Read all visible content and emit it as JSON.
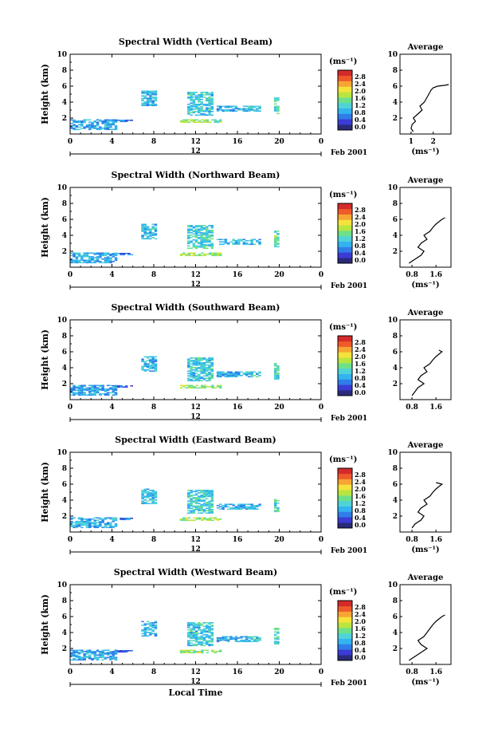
{
  "chart_data": [
    {
      "type": "heatmap",
      "title": "Spectral Width (Vertical Beam)",
      "ylabel": "Height (km)",
      "ylim": [
        0,
        10
      ],
      "yticks": [
        "2",
        "4",
        "6",
        "8",
        "10"
      ],
      "xlim": [
        0,
        24
      ],
      "xticks": [
        "0",
        "4",
        "8",
        "12",
        "16",
        "20",
        "0"
      ],
      "date_center": "12",
      "date_label": "Feb 2001",
      "colorbar": {
        "unit": "(ms⁻¹)",
        "ticks": [
          "0.0",
          "0.4",
          "0.8",
          "1.2",
          "1.6",
          "2.0",
          "2.4",
          "2.8"
        ]
      },
      "average": {
        "title": "Average",
        "xlabel": "(ms⁻¹)",
        "xticks": [
          "1",
          "2"
        ],
        "xlim": [
          0.5,
          2.8
        ],
        "ylim": [
          0,
          10
        ],
        "yticks": [
          "2",
          "4",
          "6",
          "8",
          "10"
        ],
        "x": [
          1.1,
          1.0,
          1.05,
          1.2,
          1.1,
          1.3,
          1.5,
          1.4,
          1.6,
          1.7,
          1.8,
          1.9,
          2.0,
          2.2,
          2.5,
          2.7,
          2.7
        ],
        "y": [
          0.3,
          0.7,
          1.2,
          1.6,
          2.0,
          2.5,
          3.0,
          3.5,
          4.0,
          4.5,
          5.0,
          5.5,
          5.8,
          6.0,
          6.1,
          6.2,
          6.2
        ]
      }
    },
    {
      "type": "heatmap",
      "title": "Spectral Width (Northward Beam)",
      "ylabel": "Height (km)",
      "ylim": [
        0,
        10
      ],
      "yticks": [
        "2",
        "4",
        "6",
        "8",
        "10"
      ],
      "xlim": [
        0,
        24
      ],
      "xticks": [
        "0",
        "4",
        "8",
        "12",
        "16",
        "20",
        "0"
      ],
      "date_center": "12",
      "date_label": "Feb 2001",
      "colorbar": {
        "unit": "(ms⁻¹)",
        "ticks": [
          "0.0",
          "0.4",
          "0.8",
          "1.2",
          "1.6",
          "2.0",
          "2.4",
          "2.8"
        ]
      },
      "average": {
        "title": "Average",
        "xlabel": "(ms⁻¹)",
        "xticks": [
          "0.8",
          "1.6"
        ],
        "xlim": [
          0.4,
          2.1
        ],
        "ylim": [
          0,
          10
        ],
        "yticks": [
          "2",
          "4",
          "6",
          "8",
          "10"
        ],
        "x": [
          0.7,
          0.9,
          1.1,
          1.2,
          1.0,
          1.1,
          1.3,
          1.2,
          1.4,
          1.5,
          1.6,
          1.7,
          1.8,
          1.9
        ],
        "y": [
          0.5,
          1.0,
          1.5,
          2.0,
          2.5,
          3.0,
          3.5,
          4.0,
          4.5,
          5.0,
          5.4,
          5.7,
          6.0,
          6.2
        ]
      }
    },
    {
      "type": "heatmap",
      "title": "Spectral Width (Southward Beam)",
      "ylabel": "Height (km)",
      "ylim": [
        0,
        10
      ],
      "yticks": [
        "2",
        "4",
        "6",
        "8",
        "10"
      ],
      "xlim": [
        0,
        24
      ],
      "xticks": [
        "0",
        "4",
        "8",
        "12",
        "16",
        "20",
        "0"
      ],
      "date_center": "12",
      "date_label": "Feb 2001",
      "colorbar": {
        "unit": "(ms⁻¹)",
        "ticks": [
          "0.0",
          "0.4",
          "0.8",
          "1.2",
          "1.6",
          "2.0",
          "2.4",
          "2.8"
        ]
      },
      "average": {
        "title": "Average",
        "xlabel": "",
        "xticks": [
          "0.8",
          "1.6"
        ],
        "xlim": [
          0.4,
          2.1
        ],
        "ylim": [
          0,
          10
        ],
        "yticks": [
          "2",
          "4",
          "6",
          "8",
          "10"
        ],
        "x": [
          0.8,
          0.9,
          1.0,
          1.2,
          1.0,
          1.1,
          1.3,
          1.2,
          1.4,
          1.5,
          1.6,
          1.7,
          1.8,
          1.7
        ],
        "y": [
          0.5,
          1.0,
          1.5,
          2.0,
          2.5,
          3.0,
          3.5,
          4.0,
          4.5,
          5.0,
          5.4,
          5.7,
          6.0,
          6.2
        ]
      }
    },
    {
      "type": "heatmap",
      "title": "Spectral Width (Eastward Beam)",
      "ylabel": "Height (km)",
      "ylim": [
        0,
        10
      ],
      "yticks": [
        "2",
        "4",
        "6",
        "8",
        "10"
      ],
      "xlim": [
        0,
        24
      ],
      "xticks": [
        "0",
        "4",
        "8",
        "12",
        "16",
        "20",
        "0"
      ],
      "date_center": "12",
      "date_label": "Feb 2001",
      "colorbar": {
        "unit": "(ms⁻¹)",
        "ticks": [
          "0.0",
          "0.4",
          "0.8",
          "1.2",
          "1.6",
          "2.0",
          "2.4",
          "2.8"
        ]
      },
      "average": {
        "title": "Average",
        "xlabel": "(ms⁻¹)",
        "xticks": [
          "0.8",
          "1.6"
        ],
        "xlim": [
          0.4,
          2.1
        ],
        "ylim": [
          0,
          10
        ],
        "yticks": [
          "2",
          "4",
          "6",
          "8",
          "10"
        ],
        "x": [
          0.8,
          0.9,
          1.1,
          1.2,
          1.0,
          1.1,
          1.3,
          1.2,
          1.4,
          1.5,
          1.6,
          1.7,
          1.8,
          1.6
        ],
        "y": [
          0.5,
          1.0,
          1.5,
          2.0,
          2.5,
          3.0,
          3.5,
          4.0,
          4.5,
          5.0,
          5.4,
          5.7,
          6.0,
          6.2
        ]
      }
    },
    {
      "type": "heatmap",
      "title": "Spectral Width (Westward Beam)",
      "ylabel": "Height (km)",
      "ylim": [
        0,
        10
      ],
      "yticks": [
        "2",
        "4",
        "6",
        "8",
        "10"
      ],
      "xlim": [
        0,
        24
      ],
      "xticks": [
        "0",
        "4",
        "8",
        "12",
        "16",
        "20",
        "0"
      ],
      "date_center": "12",
      "date_label": "Feb 2001",
      "xlabel": "Local Time",
      "colorbar": {
        "unit": "(ms⁻¹)",
        "ticks": [
          "0.0",
          "0.4",
          "0.8",
          "1.2",
          "1.6",
          "2.0",
          "2.4",
          "2.8"
        ]
      },
      "average": {
        "title": "Average",
        "xlabel": "(ms⁻¹)",
        "xticks": [
          "0.8",
          "1.6"
        ],
        "xlim": [
          0.4,
          2.1
        ],
        "ylim": [
          0,
          10
        ],
        "yticks": [
          "2",
          "4",
          "6",
          "8",
          "10"
        ],
        "x": [
          0.7,
          0.9,
          1.1,
          1.3,
          1.1,
          1.0,
          1.2,
          1.3,
          1.4,
          1.5,
          1.6,
          1.7,
          1.8,
          1.9
        ],
        "y": [
          0.5,
          1.0,
          1.5,
          2.0,
          2.5,
          3.0,
          3.5,
          4.0,
          4.5,
          5.0,
          5.4,
          5.7,
          6.0,
          6.2
        ]
      }
    }
  ],
  "colors": {
    "colormap": [
      "#2a2a7a",
      "#3b3bd6",
      "#2f7de8",
      "#33b3ef",
      "#4fd3d8",
      "#6ee08a",
      "#b8e63f",
      "#f4e33a",
      "#f7a533",
      "#ef5a2a",
      "#d42a2a"
    ]
  },
  "clusters": [
    {
      "t": [
        6.8,
        8.3
      ],
      "h": [
        3.5,
        5.4
      ],
      "v": 0.9
    },
    {
      "t": [
        11.2,
        13.6
      ],
      "h": [
        2.3,
        5.3
      ],
      "v": 1.0
    },
    {
      "t": [
        14.0,
        16.8
      ],
      "h": [
        2.8,
        3.5
      ],
      "v": 0.8
    },
    {
      "t": [
        17.0,
        18.2
      ],
      "h": [
        2.8,
        3.4
      ],
      "v": 0.9
    },
    {
      "t": [
        19.5,
        19.9
      ],
      "h": [
        2.5,
        4.5
      ],
      "v": 1.1
    },
    {
      "t": [
        4.0,
        6.0
      ],
      "h": [
        1.5,
        1.7
      ],
      "v": 0.4
    },
    {
      "t": [
        0.0,
        4.5
      ],
      "h": [
        0.5,
        1.8
      ],
      "v": 0.7
    },
    {
      "t": [
        10.5,
        14.5
      ],
      "h": [
        1.4,
        1.8
      ],
      "v": 1.4
    }
  ]
}
